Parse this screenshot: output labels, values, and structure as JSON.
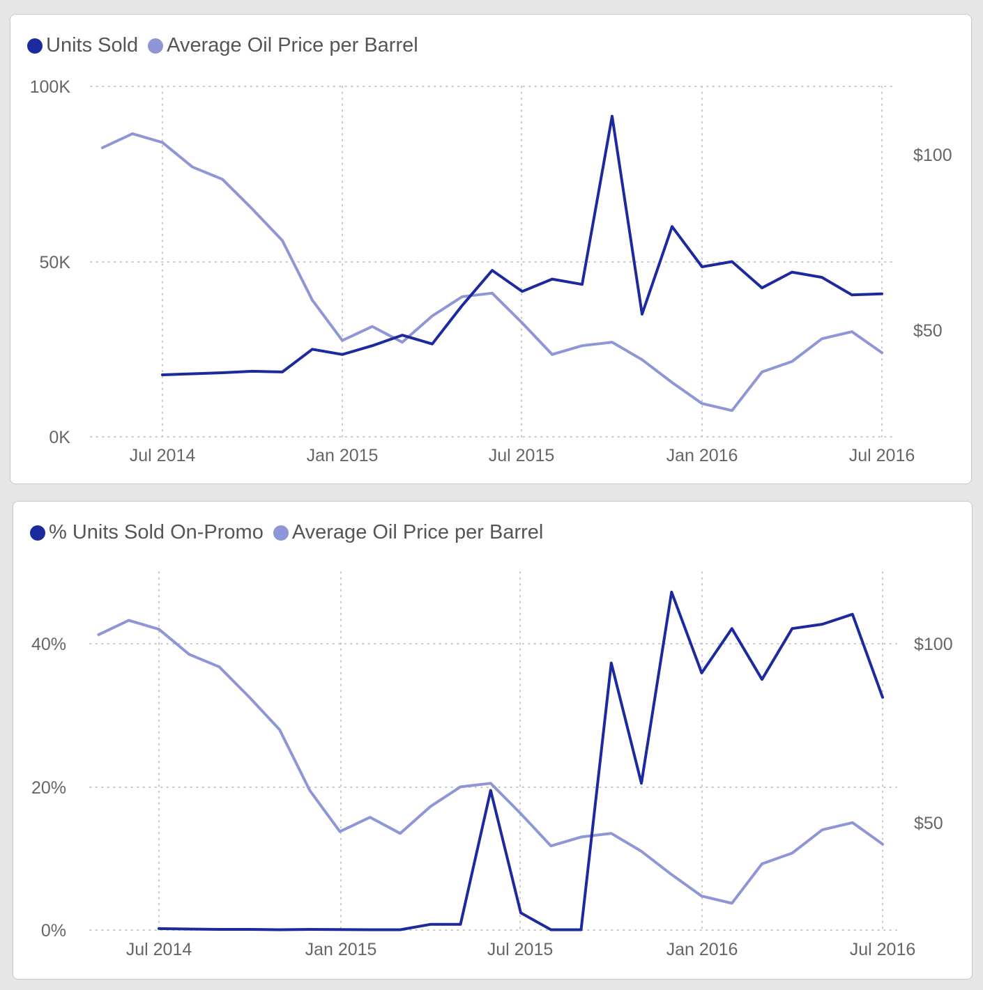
{
  "colors": {
    "primary": "#1c2a9e",
    "secondary": "#8e96d6",
    "grid": "#c9c9c9",
    "text": "#666666"
  },
  "chart_data": [
    {
      "type": "line",
      "legend": [
        "Units Sold",
        "Average Oil Price per Barrel"
      ],
      "x_ticks": [
        "Jul 2014",
        "Jan 2015",
        "Jul 2015",
        "Jan 2016",
        "Jul 2016"
      ],
      "y_left_ticks": [
        "0K",
        "50K",
        "100K"
      ],
      "y_right_ticks": [
        "$50",
        "$100"
      ],
      "y_left_range": [
        0,
        100000
      ],
      "y_right_range": [
        20,
        120
      ],
      "series": [
        {
          "name": "Units Sold",
          "axis": "left",
          "x": [
            "2014-07",
            "2014-08",
            "2014-09",
            "2014-10",
            "2014-11",
            "2014-12",
            "2015-01",
            "2015-02",
            "2015-03",
            "2015-04",
            "2015-05",
            "2015-06",
            "2015-07",
            "2015-08",
            "2015-09",
            "2015-10",
            "2015-11",
            "2015-12",
            "2016-01",
            "2016-02",
            "2016-03",
            "2016-04",
            "2016-05",
            "2016-06",
            "2016-07"
          ],
          "values": [
            17700,
            18000,
            18300,
            18700,
            18500,
            25000,
            23500,
            26000,
            29000,
            26500,
            37500,
            47500,
            41500,
            45000,
            43500,
            91500,
            35000,
            60000,
            48500,
            50000,
            42500,
            47000,
            45500,
            40500,
            40800
          ]
        },
        {
          "name": "Average Oil Price per Barrel",
          "axis": "right",
          "x": [
            "2014-05",
            "2014-06",
            "2014-07",
            "2014-08",
            "2014-09",
            "2014-10",
            "2014-11",
            "2014-12",
            "2015-01",
            "2015-02",
            "2015-03",
            "2015-04",
            "2015-05",
            "2015-06",
            "2015-07",
            "2015-08",
            "2015-09",
            "2015-10",
            "2015-11",
            "2015-12",
            "2016-01",
            "2016-02",
            "2016-03",
            "2016-04",
            "2016-05",
            "2016-06",
            "2016-07"
          ],
          "values": [
            102.5,
            106.5,
            104,
            97,
            93.5,
            85,
            76,
            59,
            47.5,
            51.5,
            47,
            54.5,
            60,
            61,
            52.5,
            43.5,
            46,
            47,
            42,
            35.5,
            29.5,
            27.5,
            38.5,
            41.5,
            48,
            50,
            44
          ]
        }
      ]
    },
    {
      "type": "line",
      "legend": [
        "% Units Sold On-Promo",
        "Average Oil Price per Barrel"
      ],
      "x_ticks": [
        "Jul 2014",
        "Jan 2015",
        "Jul 2015",
        "Jan 2016",
        "Jul 2016"
      ],
      "y_left_ticks": [
        "0%",
        "20%",
        "40%"
      ],
      "y_right_ticks": [
        "$50",
        "$100"
      ],
      "y_left_range": [
        0,
        0.5
      ],
      "y_right_range": [
        20,
        120
      ],
      "series": [
        {
          "name": "% Units Sold On-Promo",
          "axis": "left",
          "x": [
            "2014-07",
            "2014-08",
            "2014-09",
            "2014-10",
            "2014-11",
            "2014-12",
            "2015-01",
            "2015-02",
            "2015-03",
            "2015-04",
            "2015-05",
            "2015-06",
            "2015-07",
            "2015-08",
            "2015-09",
            "2015-10",
            "2015-11",
            "2015-12",
            "2016-01",
            "2016-02",
            "2016-03",
            "2016-04",
            "2016-05",
            "2016-06",
            "2016-07"
          ],
          "values": [
            0.002,
            0.0015,
            0.001,
            0.001,
            0.0005,
            0.001,
            0.0008,
            0.0005,
            0.0005,
            0.008,
            0.008,
            0.195,
            0.024,
            0.0005,
            0.0005,
            0.373,
            0.205,
            0.472,
            0.359,
            0.421,
            0.35,
            0.421,
            0.427,
            0.441,
            0.325
          ]
        },
        {
          "name": "Average Oil Price per Barrel",
          "axis": "right",
          "x": [
            "2014-05",
            "2014-06",
            "2014-07",
            "2014-08",
            "2014-09",
            "2014-10",
            "2014-11",
            "2014-12",
            "2015-01",
            "2015-02",
            "2015-03",
            "2015-04",
            "2015-05",
            "2015-06",
            "2015-07",
            "2015-08",
            "2015-09",
            "2015-10",
            "2015-11",
            "2015-12",
            "2016-01",
            "2016-02",
            "2016-03",
            "2016-04",
            "2016-05",
            "2016-06",
            "2016-07"
          ],
          "values": [
            102.5,
            106.5,
            104,
            97,
            93.5,
            85,
            76,
            59,
            47.5,
            51.5,
            47,
            54.5,
            60,
            61,
            52.5,
            43.5,
            46,
            47,
            42,
            35.5,
            29.5,
            27.5,
            38.5,
            41.5,
            48,
            50,
            44
          ]
        }
      ]
    }
  ]
}
